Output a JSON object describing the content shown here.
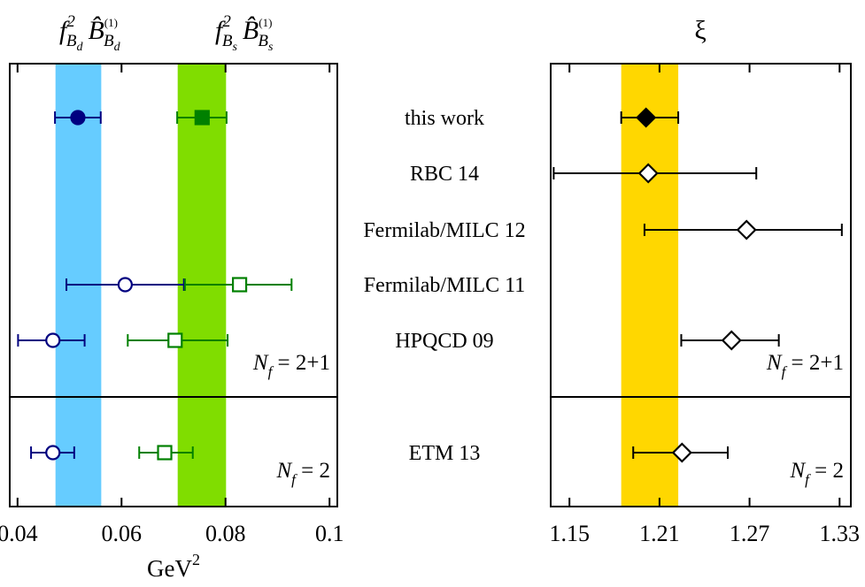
{
  "chart_data": [
    {
      "type": "scatter",
      "panel": "left",
      "xlabel": "GeV",
      "xlabel_sup": "2",
      "xlim": [
        0.0385,
        0.1015
      ],
      "xticks": [
        0.04,
        0.06,
        0.08,
        0.1
      ],
      "xtick_labels": [
        "0.04",
        "0.06",
        "0.08",
        "0.1"
      ],
      "column_headers": [
        {
          "f": "f",
          "fsup": "2",
          "fsub": "B",
          "fsubsub": "d",
          "B": "B̂",
          "Bsup": "(1)",
          "Bsub": "B",
          "Bsubsub": "d"
        },
        {
          "f": "f",
          "fsup": "2",
          "fsub": "B",
          "fsubsub": "s",
          "B": "B̂",
          "Bsup": "(1)",
          "Bsub": "B",
          "Bsubsub": "s"
        }
      ],
      "bands": [
        {
          "series": "f_Bd^2 B_Bd",
          "lo": 0.0473,
          "hi": 0.0561,
          "color": "#66ccff"
        },
        {
          "series": "f_Bs^2 B_Bs",
          "lo": 0.0708,
          "hi": 0.0801,
          "color": "#80dd00"
        }
      ],
      "series": [
        {
          "name": "f_Bd^2 B_Bd",
          "color": "#000080",
          "marker": "circle",
          "points": [
            {
              "row": "this work",
              "value": 0.0516,
              "err_lo": 0.0472,
              "err_hi": 0.056,
              "filled": true
            },
            {
              "row": "Fermilab/MILC 11",
              "value": 0.0607,
              "err_lo": 0.0494,
              "err_hi": 0.072,
              "filled": false
            },
            {
              "row": "HPQCD 09",
              "value": 0.0468,
              "err_lo": 0.0401,
              "err_hi": 0.0529,
              "filled": false
            },
            {
              "row": "ETM 13",
              "value": 0.0468,
              "err_lo": 0.0426,
              "err_hi": 0.0509,
              "filled": false
            }
          ]
        },
        {
          "name": "f_Bs^2 B_Bs",
          "color": "#008000",
          "marker": "square",
          "points": [
            {
              "row": "this work",
              "value": 0.0755,
              "err_lo": 0.0707,
              "err_hi": 0.0802,
              "filled": true
            },
            {
              "row": "Fermilab/MILC 11",
              "value": 0.0827,
              "err_lo": 0.0722,
              "err_hi": 0.0927,
              "filled": false
            },
            {
              "row": "HPQCD 09",
              "value": 0.0703,
              "err_lo": 0.0612,
              "err_hi": 0.0804,
              "filled": false
            },
            {
              "row": "ETM 13",
              "value": 0.0683,
              "err_lo": 0.0634,
              "err_hi": 0.0737,
              "filled": false
            }
          ]
        }
      ],
      "group_labels": [
        {
          "text": "N",
          "sub": "f",
          "rest": " = 2+1"
        },
        {
          "text": "N",
          "sub": "f",
          "rest": " = 2"
        }
      ]
    },
    {
      "type": "scatter",
      "panel": "right",
      "title": "ξ",
      "xlim": [
        1.1375,
        1.3375
      ],
      "xticks": [
        1.15,
        1.21,
        1.27,
        1.33
      ],
      "xtick_labels": [
        "1.15",
        "1.21",
        "1.27",
        "1.33"
      ],
      "bands": [
        {
          "series": "xi",
          "lo": 1.1845,
          "hi": 1.2225,
          "color": "#ffd700"
        }
      ],
      "series": [
        {
          "name": "xi",
          "color": "#000000",
          "marker": "diamond",
          "points": [
            {
              "row": "this work",
              "value": 1.201,
              "err_lo": 1.1845,
              "err_hi": 1.2225,
              "filled": true
            },
            {
              "row": "RBC 14",
              "value": 1.2025,
              "err_lo": 1.1395,
              "err_hi": 1.2745,
              "filled": false
            },
            {
              "row": "Fermilab/MILC 12",
              "value": 1.268,
              "err_lo": 1.2,
              "err_hi": 1.3315,
              "filled": false
            },
            {
              "row": "HPQCD 09",
              "value": 1.258,
              "err_lo": 1.2245,
              "err_hi": 1.2895,
              "filled": false
            },
            {
              "row": "ETM 13",
              "value": 1.225,
              "err_lo": 1.1925,
              "err_hi": 1.2555,
              "filled": false
            }
          ]
        }
      ],
      "group_labels": [
        {
          "text": "N",
          "sub": "f",
          "rest": " = 2+1"
        },
        {
          "text": "N",
          "sub": "f",
          "rest": " = 2"
        }
      ]
    }
  ],
  "rows": [
    "this work",
    "RBC 14",
    "Fermilab/MILC 12",
    "Fermilab/MILC 11",
    "HPQCD 09",
    "ETM 13"
  ]
}
